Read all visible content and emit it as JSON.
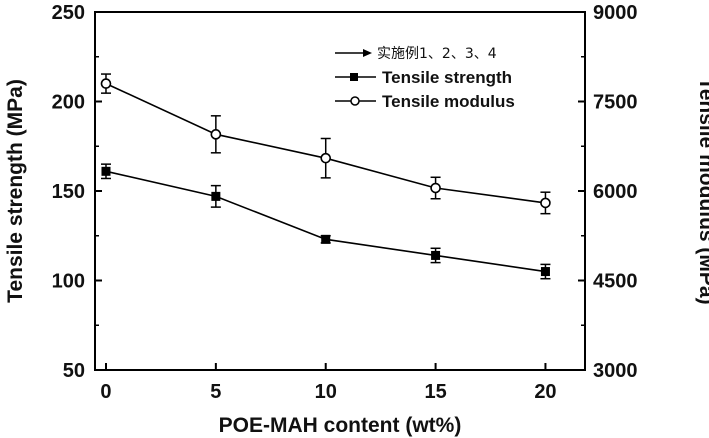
{
  "chart_data": {
    "type": "line",
    "xlabel": "POE-MAH content (wt%)",
    "ylabel": "Tensile strength (MPa)",
    "y2label": "Tensile modulus (MPa)",
    "x": [
      0,
      5,
      10,
      15,
      20
    ],
    "xticks": [
      "0",
      "5",
      "10",
      "15",
      "20"
    ],
    "xlim": [
      -0.5,
      21.8
    ],
    "ylim": [
      50,
      250
    ],
    "y2lim": [
      3000,
      9000
    ],
    "yticks": [
      "50",
      "100",
      "150",
      "200",
      "250"
    ],
    "y2ticks": [
      "3000",
      "4500",
      "6000",
      "7500",
      "9000"
    ],
    "grid": false,
    "legend_position": "top-right",
    "legend_note": "实施例1、2、3、4",
    "series": [
      {
        "name": "Tensile strength",
        "axis": "left",
        "marker": "filled-square",
        "values": [
          161,
          147,
          123,
          114,
          105
        ],
        "errors": [
          4,
          6,
          2,
          4,
          4
        ]
      },
      {
        "name": "Tensile modulus",
        "axis": "right",
        "marker": "open-circle",
        "values": [
          7800,
          6950,
          6550,
          6050,
          5800
        ],
        "errors": [
          160,
          310,
          330,
          180,
          180
        ]
      }
    ]
  },
  "colors": {
    "line": "#000000",
    "background": "#ffffff"
  }
}
